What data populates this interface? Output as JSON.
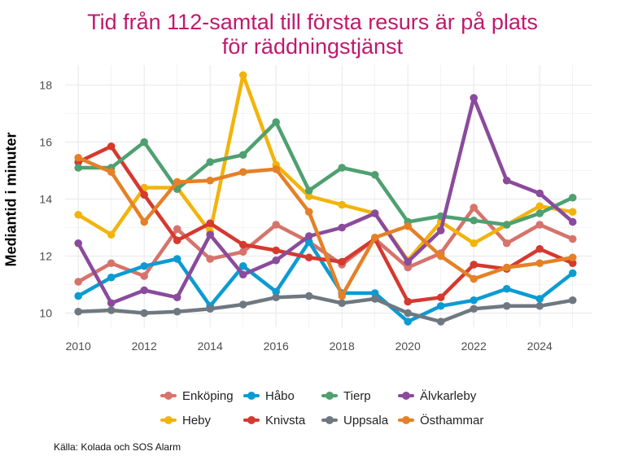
{
  "chart_data": {
    "type": "line",
    "title": [
      "Tid från 112-samtal till första resurs är på plats",
      "för räddningstjänst"
    ],
    "xlabel": "",
    "ylabel": "Mediantid i minuter",
    "xlim": [
      2009.6,
      2025.6
    ],
    "ylim": [
      9.5,
      18.7
    ],
    "x_ticks": [
      2010,
      2012,
      2014,
      2016,
      2018,
      2020,
      2022,
      2024
    ],
    "y_ticks": [
      10,
      12,
      14,
      16,
      18
    ],
    "grid": true,
    "legend_position": "bottom",
    "x": [
      2010,
      2011,
      2012,
      2013,
      2014,
      2015,
      2016,
      2017,
      2018,
      2019,
      2020,
      2021,
      2022,
      2023,
      2024,
      2025
    ],
    "series": [
      {
        "name": "Enköping",
        "color": "#d6736b",
        "values": [
          11.1,
          11.75,
          11.3,
          12.95,
          11.9,
          12.15,
          13.1,
          12.5,
          11.7,
          12.6,
          11.6,
          12.1,
          13.7,
          12.45,
          13.1,
          12.6
        ]
      },
      {
        "name": "Heby",
        "color": "#f2b40c",
        "values": [
          13.45,
          12.75,
          14.4,
          14.4,
          12.85,
          18.35,
          15.2,
          14.1,
          13.8,
          13.5,
          11.85,
          13.2,
          12.45,
          13.1,
          13.75,
          13.55
        ]
      },
      {
        "name": "Håbo",
        "color": "#0b9bd3",
        "values": [
          10.6,
          11.25,
          11.65,
          11.9,
          10.25,
          11.65,
          10.75,
          12.5,
          10.7,
          10.7,
          9.7,
          10.25,
          10.45,
          10.85,
          10.5,
          11.4
        ]
      },
      {
        "name": "Knivsta",
        "color": "#d5392f",
        "values": [
          15.3,
          15.85,
          14.15,
          12.55,
          13.15,
          12.4,
          12.2,
          11.95,
          11.8,
          12.6,
          10.4,
          10.55,
          11.7,
          11.55,
          12.25,
          11.75
        ]
      },
      {
        "name": "Tierp",
        "color": "#4fa070",
        "values": [
          15.1,
          15.1,
          16.0,
          14.35,
          15.3,
          15.55,
          16.7,
          14.3,
          15.1,
          14.85,
          13.2,
          13.4,
          13.25,
          13.1,
          13.5,
          14.05
        ]
      },
      {
        "name": "Uppsala",
        "color": "#6f7880",
        "values": [
          10.05,
          10.1,
          10.0,
          10.05,
          10.15,
          10.3,
          10.55,
          10.6,
          10.35,
          10.5,
          10.0,
          9.7,
          10.15,
          10.25,
          10.25,
          10.45
        ]
      },
      {
        "name": "Älvkarleby",
        "color": "#8a4b9c",
        "values": [
          12.45,
          10.35,
          10.8,
          10.55,
          12.75,
          11.35,
          11.85,
          12.7,
          13.0,
          13.5,
          11.8,
          12.9,
          17.55,
          14.65,
          14.2,
          13.2
        ]
      },
      {
        "name": "Östhammar",
        "color": "#e58027",
        "values": [
          15.45,
          14.95,
          13.2,
          14.6,
          14.65,
          14.95,
          15.05,
          13.55,
          10.6,
          12.65,
          13.05,
          12.0,
          11.2,
          11.6,
          11.75,
          11.95
        ]
      }
    ],
    "legend_order": [
      "Enköping",
      "Håbo",
      "Tierp",
      "Älvkarleby",
      "Heby",
      "Knivsta",
      "Uppsala",
      "Östhammar"
    ]
  },
  "source": "Källa: Kolada och SOS Alarm",
  "colors": {
    "title": "#c0186f",
    "grid": "#ebebeb",
    "axis_text": "#4d4d4d"
  }
}
